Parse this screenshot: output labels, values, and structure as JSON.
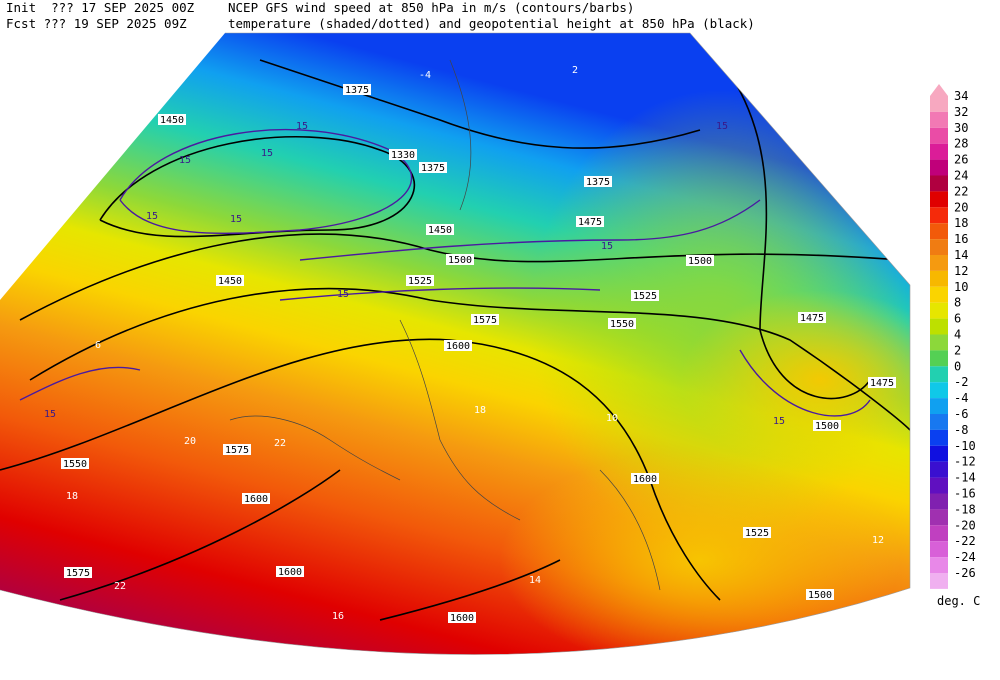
{
  "header": {
    "init": "Init  ??? 17 SEP 2025 00Z",
    "fcst": "Fcst ??? 19 SEP 2025 09Z",
    "title_line1": "NCEP GFS wind speed at 850 hPa in m/s (contours/barbs)",
    "title_line2": "temperature (shaded/dotted) and geopotential height at 850 hPa (black)"
  },
  "colorbar": {
    "ticks": [
      34,
      32,
      30,
      28,
      26,
      24,
      22,
      20,
      18,
      16,
      14,
      12,
      10,
      8,
      6,
      4,
      2,
      0,
      -2,
      -4,
      -6,
      -8,
      -10,
      -12,
      -14,
      -16,
      -18,
      -20,
      -22,
      -24,
      -26
    ],
    "colors": [
      "#f7a8c0",
      "#f279b4",
      "#ea4ca6",
      "#db1d98",
      "#c0007a",
      "#b00040",
      "#e00000",
      "#f52a0a",
      "#f25a0a",
      "#f07c12",
      "#f59a10",
      "#f7b800",
      "#fad400",
      "#e6e600",
      "#bde000",
      "#8cd83a",
      "#54d054",
      "#22d0b0",
      "#10c8e8",
      "#10a0f0",
      "#1878f0",
      "#0a40f0",
      "#1010e0",
      "#3a10d0",
      "#6010c0",
      "#8020b0",
      "#a030b0",
      "#c040c0",
      "#d860d8",
      "#e888e8",
      "#f0b0f0"
    ],
    "unit": "deg. C"
  },
  "map": {
    "height_labels": [
      "1375",
      "1450",
      "1330",
      "1375",
      "1375",
      "1450",
      "1475",
      "1500",
      "1525",
      "1500",
      "1525",
      "1575",
      "1550",
      "1600",
      "1475",
      "1475",
      "1500",
      "1450",
      "1550",
      "1575",
      "1600",
      "1575",
      "1600",
      "1600",
      "1500",
      "1525",
      "1600"
    ],
    "wind_labels": [
      "15",
      "15",
      "15",
      "15",
      "15",
      "15",
      "15",
      "15",
      "15",
      "15"
    ],
    "temperature_labels": [
      "-4",
      "2",
      "6",
      "18",
      "20",
      "22",
      "18",
      "10",
      "16",
      "22",
      "12",
      "14"
    ]
  }
}
